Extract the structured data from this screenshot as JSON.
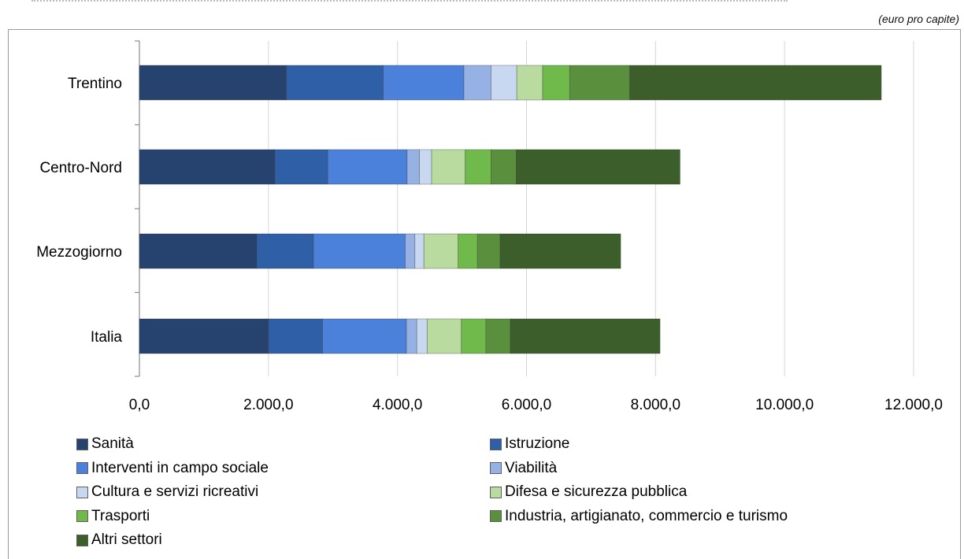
{
  "header": {
    "unit_note": "(euro pro capite)"
  },
  "colors": {
    "Sanità": "#26426f",
    "Istruzione": "#2f5fa6",
    "Interventi in campo sociale": "#4b80db",
    "Viabilità": "#96b2e5",
    "Cultura e servizi ricreativi": "#c8d8f1",
    "Difesa e sicurezza pubblica": "#b9dba0",
    "Trasporti": "#6fba4b",
    "Industria, artigianato, commercio e turismo": "#5a8f3d",
    "Altri settori": "#3b5e2a"
  },
  "chart_data": {
    "type": "bar",
    "orientation": "horizontal",
    "stacked": true,
    "categories": [
      "Trentino",
      "Centro-Nord",
      "Mezzogiorno",
      "Italia"
    ],
    "series": [
      {
        "name": "Sanità",
        "values": [
          2280,
          2100,
          1820,
          2000
        ]
      },
      {
        "name": "Istruzione",
        "values": [
          1500,
          820,
          880,
          840
        ]
      },
      {
        "name": "Interventi in campo sociale",
        "values": [
          1250,
          1230,
          1420,
          1300
        ]
      },
      {
        "name": "Viabilità",
        "values": [
          420,
          190,
          150,
          160
        ]
      },
      {
        "name": "Cultura e servizi ricreativi",
        "values": [
          400,
          190,
          140,
          160
        ]
      },
      {
        "name": "Difesa e sicurezza pubblica",
        "values": [
          400,
          520,
          530,
          530
        ]
      },
      {
        "name": "Trasporti",
        "values": [
          420,
          400,
          300,
          380
        ]
      },
      {
        "name": "Industria, artigianato, commercio e turismo",
        "values": [
          930,
          390,
          350,
          380
        ]
      },
      {
        "name": "Altri settori",
        "values": [
          3900,
          2540,
          1870,
          2320
        ]
      }
    ],
    "x_ticks": [
      "0,0",
      "2.000,0",
      "4.000,0",
      "6.000,0",
      "8.000,0",
      "10.000,0",
      "12.000,0"
    ],
    "xlim": [
      0,
      12000
    ],
    "grid": "vertical",
    "legend_position": "bottom"
  }
}
